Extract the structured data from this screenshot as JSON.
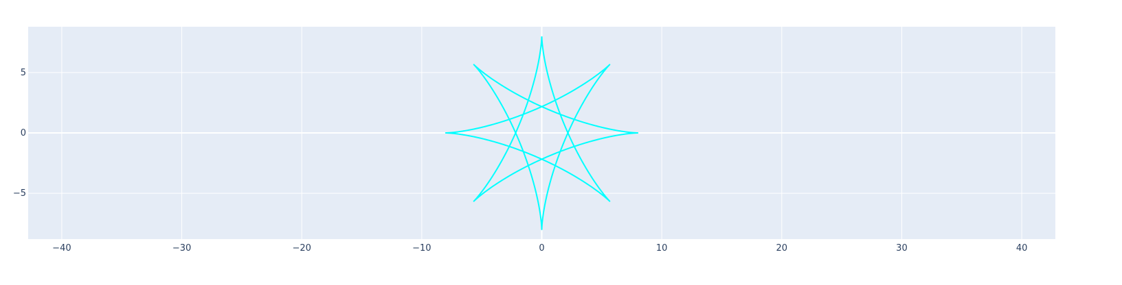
{
  "chart_data": {
    "type": "line",
    "title": "",
    "xlabel": "",
    "ylabel": "",
    "xlim": [
      -42.8,
      42.8
    ],
    "ylim": [
      -8.8,
      8.8
    ],
    "x_ticks": [
      -40,
      -30,
      -20,
      -10,
      0,
      10,
      20,
      30,
      40
    ],
    "x_tick_labels": [
      "−40",
      "−30",
      "−20",
      "−10",
      "0",
      "10",
      "20",
      "30",
      "40"
    ],
    "y_ticks": [
      -5,
      0,
      5
    ],
    "y_tick_labels": [
      "−5",
      "0",
      "5"
    ],
    "grid": true,
    "legend": "none",
    "series": [
      {
        "curve": "hypocycloid",
        "cusps": 8,
        "outer_radius": 8,
        "rolling_radius": 3,
        "windings": 3,
        "color": "#00ffff"
      }
    ]
  },
  "colors": {
    "plot_background": "#e5ecf6",
    "gridline": "#ffffff",
    "tick_text": "#2a3f5f",
    "line": "#00ffff"
  }
}
